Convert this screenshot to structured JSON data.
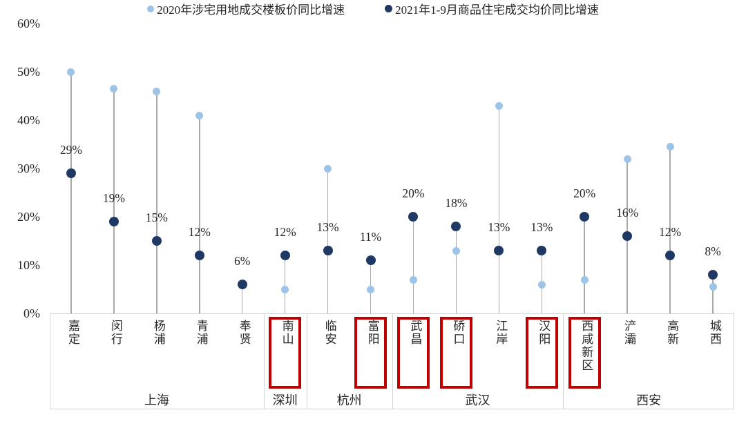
{
  "chart_data": {
    "type": "lollipop",
    "title": "",
    "unit": "%",
    "grid": false,
    "legend_position": "bottom-center",
    "y_axis": {
      "min": 0,
      "max": 60,
      "step": 10,
      "tick_labels": [
        "0%",
        "10%",
        "20%",
        "30%",
        "40%",
        "50%",
        "60%"
      ]
    },
    "series": [
      {
        "id": "land2020",
        "name": "2020年涉宅用地成交楼板价同比增速",
        "color": "#9ec3e8",
        "marker": "circle-icon"
      },
      {
        "id": "house2021",
        "name": "2021年1-9月商品住宅成交均价同比增速",
        "color": "#1f3864",
        "marker": "circle-icon"
      }
    ],
    "highlight_box_color": "#c00000",
    "groups": [
      {
        "city": "上海",
        "districts": [
          {
            "name": "嘉定",
            "land2020": 50,
            "house2021": 29,
            "house2021_label": "29%",
            "highlighted": false
          },
          {
            "name": "闵行",
            "land2020": 46.5,
            "house2021": 19,
            "house2021_label": "19%",
            "highlighted": false
          },
          {
            "name": "杨浦",
            "land2020": 46,
            "house2021": 15,
            "house2021_label": "15%",
            "highlighted": false
          },
          {
            "name": "青浦",
            "land2020": 41,
            "house2021": 12,
            "house2021_label": "12%",
            "highlighted": false
          },
          {
            "name": "奉贤",
            "land2020": null,
            "house2021": 6,
            "house2021_label": "6%",
            "highlighted": false
          }
        ]
      },
      {
        "city": "深圳",
        "districts": [
          {
            "name": "南山",
            "land2020": 5,
            "house2021": 12,
            "house2021_label": "12%",
            "highlighted": true
          }
        ]
      },
      {
        "city": "杭州",
        "districts": [
          {
            "name": "临安",
            "land2020": 30,
            "house2021": 13,
            "house2021_label": "13%",
            "highlighted": false
          },
          {
            "name": "富阳",
            "land2020": 5,
            "house2021": 11,
            "house2021_label": "11%",
            "highlighted": true
          }
        ]
      },
      {
        "city": "武汉",
        "districts": [
          {
            "name": "武昌",
            "land2020": 7,
            "house2021": 20,
            "house2021_label": "20%",
            "highlighted": true
          },
          {
            "name": "硚口",
            "land2020": 13,
            "house2021": 18,
            "house2021_label": "18%",
            "highlighted": true
          },
          {
            "name": "江岸",
            "land2020": 43,
            "house2021": 13,
            "house2021_label": "13%",
            "highlighted": false
          },
          {
            "name": "汉阳",
            "land2020": 6,
            "house2021": 13,
            "house2021_label": "13%",
            "highlighted": true
          }
        ]
      },
      {
        "city": "西安",
        "districts": [
          {
            "name": "西咸新区",
            "land2020": 7,
            "house2021": 20,
            "house2021_label": "20%",
            "highlighted": true
          },
          {
            "name": "浐灞",
            "land2020": 32,
            "house2021": 16,
            "house2021_label": "16%",
            "highlighted": false
          },
          {
            "name": "高新",
            "land2020": 34.5,
            "house2021": 12,
            "house2021_label": "12%",
            "highlighted": false
          },
          {
            "name": "城西",
            "land2020": 5.5,
            "house2021": 8,
            "house2021_label": "8%",
            "highlighted": false
          }
        ]
      }
    ]
  }
}
